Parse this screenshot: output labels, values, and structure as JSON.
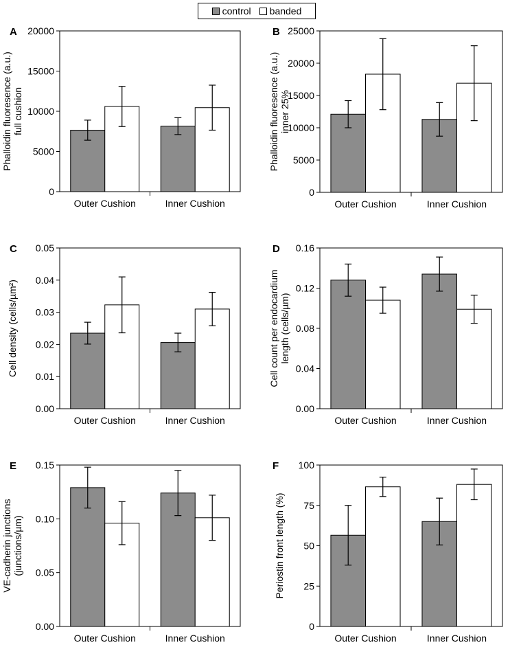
{
  "legend": {
    "control_label": "control",
    "banded_label": "banded",
    "control_color": "#8c8c8c",
    "banded_color": "#ffffff"
  },
  "chart_data": [
    {
      "panel": "A",
      "type": "bar",
      "ylabel": [
        "Phalloidin fluoresence (a.u.)",
        "full cushion"
      ],
      "categories": [
        "Outer Cushion",
        "Inner Cushion"
      ],
      "ylim": [
        0,
        20000
      ],
      "ticks": [
        0,
        5000,
        10000,
        15000,
        20000
      ],
      "tick_labels": [
        "0",
        "5000",
        "10000",
        "15000",
        "20000"
      ],
      "series": [
        {
          "name": "control",
          "values": [
            7650,
            8150
          ],
          "errors": [
            1250,
            1050
          ]
        },
        {
          "name": "banded",
          "values": [
            10600,
            10450
          ],
          "errors": [
            2500,
            2800
          ]
        }
      ]
    },
    {
      "panel": "B",
      "type": "bar",
      "ylabel": [
        "Phalloidin fluoresence (a.u.)",
        "inner 25%"
      ],
      "categories": [
        "Outer Cushion",
        "Inner Cushion"
      ],
      "ylim": [
        0,
        25000
      ],
      "ticks": [
        0,
        5000,
        10000,
        15000,
        20000,
        25000
      ],
      "tick_labels": [
        "0",
        "5000",
        "10000",
        "15000",
        "20000",
        "25000"
      ],
      "series": [
        {
          "name": "control",
          "values": [
            12100,
            11300
          ],
          "errors": [
            2100,
            2600
          ]
        },
        {
          "name": "banded",
          "values": [
            18300,
            16900
          ],
          "errors": [
            5500,
            5800
          ]
        }
      ]
    },
    {
      "panel": "C",
      "type": "bar",
      "ylabel": [
        "Cell density (cells/µm²)"
      ],
      "categories": [
        "Outer Cushion",
        "Inner Cushion"
      ],
      "ylim": [
        0,
        0.05
      ],
      "ticks": [
        0,
        0.01,
        0.02,
        0.03,
        0.04,
        0.05
      ],
      "tick_labels": [
        "0.00",
        "0.01",
        "0.02",
        "0.03",
        "0.04",
        "0.05"
      ],
      "series": [
        {
          "name": "control",
          "values": [
            0.0235,
            0.0206
          ],
          "errors": [
            0.0034,
            0.0029
          ]
        },
        {
          "name": "banded",
          "values": [
            0.0323,
            0.031
          ],
          "errors": [
            0.0087,
            0.0052
          ]
        }
      ]
    },
    {
      "panel": "D",
      "type": "bar",
      "ylabel": [
        "Cell count per endocardium",
        "length (cells/µm)"
      ],
      "categories": [
        "Outer Cushion",
        "Inner Cushion"
      ],
      "ylim": [
        0,
        0.16
      ],
      "ticks": [
        0,
        0.04,
        0.08,
        0.12,
        0.16
      ],
      "tick_labels": [
        "0.00",
        "0.04",
        "0.08",
        "0.12",
        "0.16"
      ],
      "series": [
        {
          "name": "control",
          "values": [
            0.128,
            0.134
          ],
          "errors": [
            0.016,
            0.017
          ]
        },
        {
          "name": "banded",
          "values": [
            0.108,
            0.099
          ],
          "errors": [
            0.013,
            0.014
          ]
        }
      ]
    },
    {
      "panel": "E",
      "type": "bar",
      "ylabel": [
        "VE-cadherin  junctions",
        "(junctions/µm)"
      ],
      "categories": [
        "Outer Cushion",
        "Inner Cushion"
      ],
      "ylim": [
        0,
        0.15
      ],
      "ticks": [
        0,
        0.05,
        0.1,
        0.15
      ],
      "tick_labels": [
        "0.00",
        "0.05",
        "0.10",
        "0.15"
      ],
      "series": [
        {
          "name": "control",
          "values": [
            0.129,
            0.124
          ],
          "errors": [
            0.019,
            0.021
          ]
        },
        {
          "name": "banded",
          "values": [
            0.096,
            0.101
          ],
          "errors": [
            0.02,
            0.021
          ]
        }
      ]
    },
    {
      "panel": "F",
      "type": "bar",
      "ylabel": [
        "Periostin front length (%)"
      ],
      "categories": [
        "Outer Cushion",
        "Inner Cushion"
      ],
      "ylim": [
        0,
        100
      ],
      "ticks": [
        0,
        25,
        50,
        75,
        100
      ],
      "tick_labels": [
        "0",
        "25",
        "50",
        "75",
        "100"
      ],
      "series": [
        {
          "name": "control",
          "values": [
            56.5,
            65
          ],
          "errors": [
            18.5,
            14.5
          ]
        },
        {
          "name": "banded",
          "values": [
            86.5,
            88
          ],
          "errors": [
            6,
            9.5
          ]
        }
      ]
    }
  ]
}
